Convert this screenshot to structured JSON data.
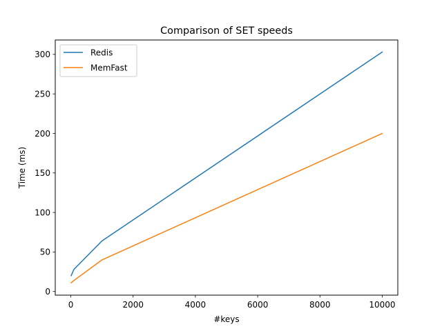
{
  "chart_data": {
    "type": "line",
    "title": "Comparison of SET speeds",
    "xlabel": "#keys",
    "ylabel": "Time (ms)",
    "xlim": [
      -500,
      10500
    ],
    "ylim": [
      -4.6,
      318.2
    ],
    "x_ticks": [
      0,
      2000,
      4000,
      6000,
      8000,
      10000
    ],
    "y_ticks": [
      0,
      50,
      100,
      150,
      200,
      250,
      300
    ],
    "grid": false,
    "legend_position": "upper-left",
    "series": [
      {
        "name": "Redis",
        "color": "#1f77b4",
        "x": [
          10,
          100,
          1000,
          10000
        ],
        "y": [
          20,
          28,
          64,
          303
        ]
      },
      {
        "name": "MemFast",
        "color": "#ff7f0e",
        "x": [
          10,
          100,
          1000,
          10000
        ],
        "y": [
          11,
          14,
          40,
          200
        ]
      }
    ]
  }
}
